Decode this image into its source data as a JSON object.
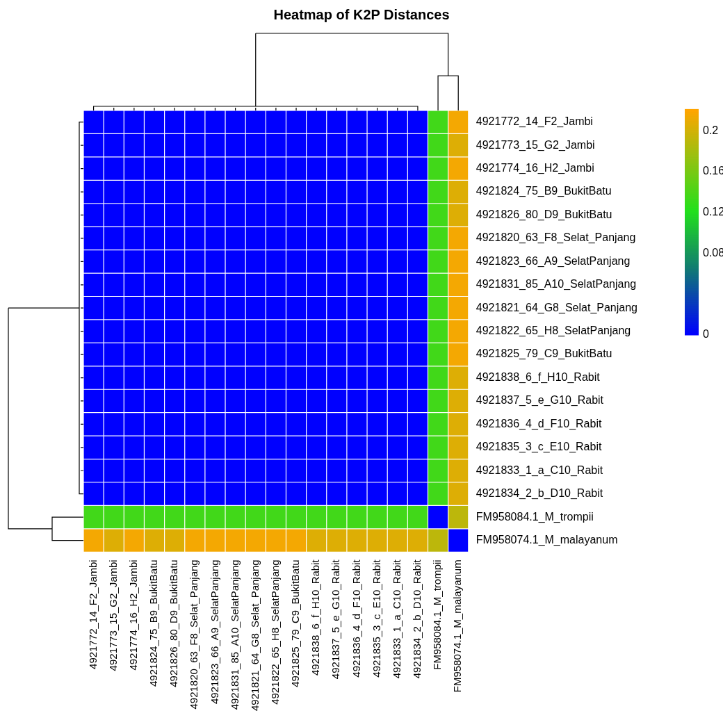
{
  "chart_data": {
    "type": "heatmap",
    "title": "Heatmap of K2P Distances",
    "categories": [
      "4921772_14_F2_Jambi",
      "4921773_15_G2_Jambi",
      "4921774_16_H2_Jambi",
      "4921824_75_B9_BukitBatu",
      "4921826_80_D9_BukitBatu",
      "4921820_63_F8_Selat_Panjang",
      "4921823_66_A9_SelatPanjang",
      "4921831_85_A10_SelatPanjang",
      "4921821_64_G8_Selat_Panjang",
      "4921822_65_H8_SelatPanjang",
      "4921825_79_C9_BukitBatu",
      "4921838_6_f_H10_Rabit",
      "4921837_5_e_G10_Rabit",
      "4921836_4_d_F10_Rabit",
      "4921835_3_c_E10_Rabit",
      "4921833_1_a_C10_Rabit",
      "4921834_2_b_D10_Rabit",
      "FM958084.1_M_trompii",
      "FM958074.1_M_malayanum"
    ],
    "y_categories": [
      "4921772_14_F2_Jambi",
      "4921773_15_G2_Jambi",
      "4921774_16_H2_Jambi",
      "4921824_75_B9_BukitBatu",
      "4921826_80_D9_BukitBatu",
      "4921820_63_F8_Selat_Panjang",
      "4921823_66_A9_SelatPanjang",
      "4921831_85_A10_SelatPanjang",
      "4921821_64_G8_Selat_Panjang",
      "4921822_65_H8_SelatPanjang",
      "4921825_79_C9_BukitBatu",
      "4921838_6_f_H10_Rabit",
      "4921837_5_e_G10_Rabit",
      "4921836_4_d_F10_Rabit",
      "4921835_3_c_E10_Rabit",
      "4921833_1_a_C10_Rabit",
      "4921834_2_b_D10_Rabit",
      "FM958084.1_M_trompii",
      "FM958074.1_M_malayanum"
    ],
    "cells": [
      [
        0,
        0,
        0,
        0,
        0,
        0,
        0,
        0,
        0,
        0,
        0,
        0,
        0,
        0,
        0,
        0,
        0,
        0.135,
        0.215
      ],
      [
        0,
        0,
        0,
        0,
        0,
        0,
        0,
        0,
        0,
        0,
        0,
        0,
        0,
        0,
        0,
        0,
        0,
        0.135,
        0.205
      ],
      [
        0,
        0,
        0,
        0,
        0,
        0,
        0,
        0,
        0,
        0,
        0,
        0,
        0,
        0,
        0,
        0,
        0,
        0.135,
        0.215
      ],
      [
        0,
        0,
        0,
        0,
        0,
        0,
        0,
        0,
        0,
        0,
        0,
        0,
        0,
        0,
        0,
        0,
        0,
        0.135,
        0.205
      ],
      [
        0,
        0,
        0,
        0,
        0,
        0,
        0,
        0,
        0,
        0,
        0,
        0,
        0,
        0,
        0,
        0,
        0,
        0.135,
        0.205
      ],
      [
        0,
        0,
        0,
        0,
        0,
        0,
        0,
        0,
        0,
        0,
        0,
        0,
        0,
        0,
        0,
        0,
        0,
        0.135,
        0.215
      ],
      [
        0,
        0,
        0,
        0,
        0,
        0,
        0,
        0,
        0,
        0,
        0,
        0,
        0,
        0,
        0,
        0,
        0,
        0.135,
        0.215
      ],
      [
        0,
        0,
        0,
        0,
        0,
        0,
        0,
        0,
        0,
        0,
        0,
        0,
        0,
        0,
        0,
        0,
        0,
        0.135,
        0.215
      ],
      [
        0,
        0,
        0,
        0,
        0,
        0,
        0,
        0,
        0,
        0,
        0,
        0,
        0,
        0,
        0,
        0,
        0,
        0.135,
        0.215
      ],
      [
        0,
        0,
        0,
        0,
        0,
        0,
        0,
        0,
        0,
        0,
        0,
        0,
        0,
        0,
        0,
        0,
        0,
        0.135,
        0.215
      ],
      [
        0,
        0,
        0,
        0,
        0,
        0,
        0,
        0,
        0,
        0,
        0,
        0,
        0,
        0,
        0,
        0,
        0,
        0.135,
        0.215
      ],
      [
        0,
        0,
        0,
        0,
        0,
        0,
        0,
        0,
        0,
        0,
        0,
        0,
        0,
        0,
        0,
        0,
        0,
        0.135,
        0.205
      ],
      [
        0,
        0,
        0,
        0,
        0,
        0,
        0,
        0,
        0,
        0,
        0,
        0,
        0,
        0,
        0,
        0,
        0,
        0.135,
        0.205
      ],
      [
        0,
        0,
        0,
        0,
        0,
        0,
        0,
        0,
        0,
        0,
        0,
        0,
        0,
        0,
        0,
        0,
        0,
        0.135,
        0.205
      ],
      [
        0,
        0,
        0,
        0,
        0,
        0,
        0,
        0,
        0,
        0,
        0,
        0,
        0,
        0,
        0,
        0,
        0,
        0.135,
        0.205
      ],
      [
        0,
        0,
        0,
        0,
        0,
        0,
        0,
        0,
        0,
        0,
        0,
        0,
        0,
        0,
        0,
        0,
        0,
        0.135,
        0.205
      ],
      [
        0,
        0,
        0,
        0,
        0,
        0,
        0,
        0,
        0,
        0,
        0,
        0,
        0,
        0,
        0,
        0,
        0,
        0.135,
        0.205
      ],
      [
        0.135,
        0.135,
        0.135,
        0.135,
        0.135,
        0.135,
        0.135,
        0.135,
        0.135,
        0.135,
        0.135,
        0.135,
        0.135,
        0.135,
        0.135,
        0.135,
        0.135,
        0,
        0.19
      ],
      [
        0.215,
        0.205,
        0.215,
        0.205,
        0.205,
        0.215,
        0.215,
        0.215,
        0.215,
        0.215,
        0.215,
        0.205,
        0.205,
        0.205,
        0.205,
        0.205,
        0.205,
        0.19,
        0
      ]
    ],
    "clim": [
      0,
      0.22
    ],
    "cticks": [
      0,
      0.08,
      0.12,
      0.16,
      0.2
    ]
  }
}
